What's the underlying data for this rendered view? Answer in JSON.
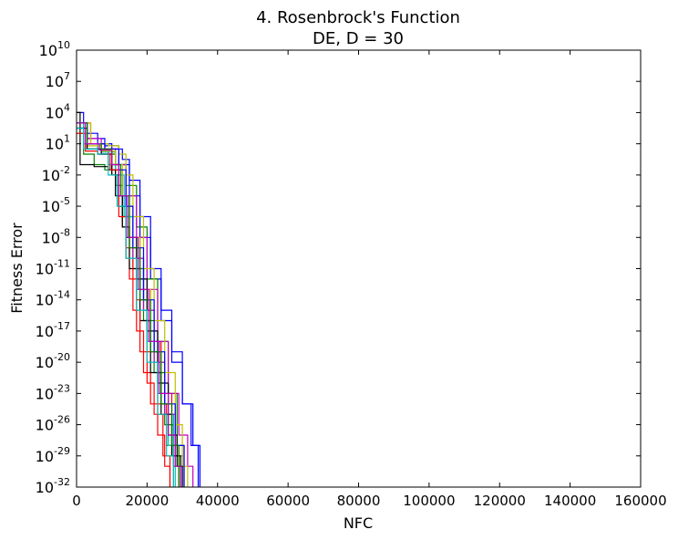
{
  "chart_data": {
    "type": "line",
    "title_line1": "4.   Rosenbrock's Function",
    "title_line2": "DE, D = 30",
    "xlabel": "NFC",
    "ylabel": "Fitness Error",
    "xlim": [
      0,
      160000
    ],
    "ylim_exponents": [
      -32,
      10
    ],
    "yscale": "log",
    "grid": false,
    "legend": "none",
    "x_ticks": [
      {
        "value": 0,
        "label": "0"
      },
      {
        "value": 20000,
        "label": "20000"
      },
      {
        "value": 40000,
        "label": "40000"
      },
      {
        "value": 60000,
        "label": "60000"
      },
      {
        "value": 80000,
        "label": "80000"
      },
      {
        "value": 100000,
        "label": "100000"
      },
      {
        "value": 120000,
        "label": "120000"
      },
      {
        "value": 140000,
        "label": "140000"
      },
      {
        "value": 160000,
        "label": "160000"
      }
    ],
    "y_ticks": [
      {
        "exponent": 10,
        "base": "10",
        "exp_label": "10"
      },
      {
        "exponent": 7,
        "base": "10",
        "exp_label": "7"
      },
      {
        "exponent": 4,
        "base": "10",
        "exp_label": "4"
      },
      {
        "exponent": 1,
        "base": "10",
        "exp_label": "1"
      },
      {
        "exponent": -2,
        "base": "10",
        "exp_label": "-2"
      },
      {
        "exponent": -5,
        "base": "10",
        "exp_label": "-5"
      },
      {
        "exponent": -8,
        "base": "10",
        "exp_label": "-8"
      },
      {
        "exponent": -11,
        "base": "10",
        "exp_label": "-11"
      },
      {
        "exponent": -14,
        "base": "10",
        "exp_label": "-14"
      },
      {
        "exponent": -17,
        "base": "10",
        "exp_label": "-17"
      },
      {
        "exponent": -20,
        "base": "10",
        "exp_label": "-20"
      },
      {
        "exponent": -23,
        "base": "10",
        "exp_label": "-23"
      },
      {
        "exponent": -26,
        "base": "10",
        "exp_label": "-26"
      },
      {
        "exponent": -29,
        "base": "10",
        "exp_label": "-29"
      },
      {
        "exponent": -32,
        "base": "10",
        "exp_label": "-32"
      }
    ],
    "series": [
      {
        "color": "#0000ff",
        "points": [
          [
            0,
            4
          ],
          [
            2000,
            2
          ],
          [
            6000,
            1
          ],
          [
            10000,
            0.5
          ],
          [
            13000,
            -0.5
          ],
          [
            15000,
            -2.5
          ],
          [
            18000,
            -6
          ],
          [
            21000,
            -11
          ],
          [
            24000,
            -15
          ],
          [
            27000,
            -19
          ],
          [
            30000,
            -24
          ],
          [
            33000,
            -28
          ],
          [
            35000,
            -32
          ]
        ]
      },
      {
        "color": "#0000ff",
        "points": [
          [
            0,
            3
          ],
          [
            3000,
            1.5
          ],
          [
            8000,
            0.8
          ],
          [
            12000,
            -1
          ],
          [
            15000,
            -4
          ],
          [
            18000,
            -8
          ],
          [
            21000,
            -12
          ],
          [
            24000,
            -16
          ],
          [
            27000,
            -20
          ],
          [
            30000,
            -24
          ],
          [
            32500,
            -28
          ],
          [
            34500,
            -32
          ]
        ]
      },
      {
        "color": "#ff0000",
        "points": [
          [
            0,
            3
          ],
          [
            2000,
            1
          ],
          [
            6000,
            0.5
          ],
          [
            9000,
            -1
          ],
          [
            11000,
            -3
          ],
          [
            13000,
            -7
          ],
          [
            15000,
            -12
          ],
          [
            17000,
            -17
          ],
          [
            19000,
            -21
          ],
          [
            21000,
            -24
          ],
          [
            23000,
            -27
          ],
          [
            25000,
            -30
          ],
          [
            26500,
            -32
          ]
        ]
      },
      {
        "color": "#ff0000",
        "points": [
          [
            0,
            2
          ],
          [
            3000,
            0.5
          ],
          [
            7000,
            0
          ],
          [
            10000,
            -2
          ],
          [
            12000,
            -5
          ],
          [
            14000,
            -9
          ],
          [
            17000,
            -14
          ],
          [
            20000,
            -19
          ],
          [
            23000,
            -24
          ],
          [
            25500,
            -28
          ],
          [
            27500,
            -32
          ]
        ]
      },
      {
        "color": "#ff0000",
        "points": [
          [
            0,
            3
          ],
          [
            4000,
            1
          ],
          [
            8000,
            0.5
          ],
          [
            11000,
            -1.5
          ],
          [
            13000,
            -4
          ],
          [
            15000,
            -8
          ],
          [
            18000,
            -13
          ],
          [
            21000,
            -18
          ],
          [
            24000,
            -23
          ],
          [
            27000,
            -28
          ],
          [
            29000,
            -32
          ]
        ]
      },
      {
        "color": "#008000",
        "points": [
          [
            0,
            2.5
          ],
          [
            2000,
            0
          ],
          [
            5000,
            -1
          ],
          [
            8000,
            -1.5
          ],
          [
            11000,
            -3
          ],
          [
            13000,
            -6
          ],
          [
            16000,
            -11
          ],
          [
            19000,
            -16
          ],
          [
            22000,
            -21
          ],
          [
            25000,
            -26
          ],
          [
            27500,
            -30
          ],
          [
            29000,
            -32
          ]
        ]
      },
      {
        "color": "#008000",
        "points": [
          [
            0,
            3
          ],
          [
            3000,
            1
          ],
          [
            7000,
            0
          ],
          [
            11000,
            -1
          ],
          [
            14000,
            -3
          ],
          [
            17000,
            -7
          ],
          [
            20000,
            -12
          ],
          [
            23000,
            -18
          ],
          [
            26000,
            -23
          ],
          [
            28500,
            -28
          ],
          [
            30500,
            -32
          ]
        ]
      },
      {
        "color": "#00bfbf",
        "points": [
          [
            0,
            3
          ],
          [
            2000,
            1
          ],
          [
            6000,
            0
          ],
          [
            9000,
            -1
          ],
          [
            12000,
            -4
          ],
          [
            14000,
            -8
          ],
          [
            17000,
            -13
          ],
          [
            20000,
            -18
          ],
          [
            23000,
            -23
          ],
          [
            26000,
            -28
          ],
          [
            28000,
            -32
          ]
        ]
      },
      {
        "color": "#00bfbf",
        "points": [
          [
            0,
            2
          ],
          [
            3000,
            0.5
          ],
          [
            7000,
            0.2
          ],
          [
            11000,
            -2
          ],
          [
            13500,
            -6
          ],
          [
            16000,
            -10
          ],
          [
            19000,
            -15
          ],
          [
            22000,
            -20
          ],
          [
            25000,
            -25
          ],
          [
            27500,
            -29
          ],
          [
            29500,
            -32
          ]
        ]
      },
      {
        "color": "#bf00bf",
        "points": [
          [
            0,
            3
          ],
          [
            3000,
            1.5
          ],
          [
            7000,
            0.5
          ],
          [
            11000,
            -1
          ],
          [
            14000,
            -4
          ],
          [
            17000,
            -8
          ],
          [
            20000,
            -13
          ],
          [
            23000,
            -18
          ],
          [
            26000,
            -23
          ],
          [
            29000,
            -27
          ],
          [
            31500,
            -30
          ],
          [
            33000,
            -32
          ]
        ]
      },
      {
        "color": "#bf00bf",
        "points": [
          [
            0,
            2.5
          ],
          [
            2500,
            0.5
          ],
          [
            6000,
            0
          ],
          [
            10000,
            -1.5
          ],
          [
            13000,
            -5
          ],
          [
            16000,
            -10
          ],
          [
            19000,
            -15
          ],
          [
            22000,
            -20
          ],
          [
            25000,
            -25
          ],
          [
            28000,
            -29
          ],
          [
            30000,
            -32
          ]
        ]
      },
      {
        "color": "#bfbf00",
        "points": [
          [
            0,
            3
          ],
          [
            4000,
            1
          ],
          [
            9000,
            0.8
          ],
          [
            12000,
            0
          ],
          [
            14000,
            -2
          ],
          [
            16000,
            -6
          ],
          [
            19000,
            -11
          ],
          [
            22000,
            -16
          ],
          [
            25000,
            -21
          ],
          [
            28000,
            -26
          ],
          [
            30000,
            -30
          ],
          [
            31500,
            -32
          ]
        ]
      },
      {
        "color": "#bfbf00",
        "points": [
          [
            0,
            2
          ],
          [
            3000,
            0.8
          ],
          [
            7000,
            0.3
          ],
          [
            11000,
            -1
          ],
          [
            13000,
            -4
          ],
          [
            15000,
            -8
          ],
          [
            18000,
            -13
          ],
          [
            21000,
            -19
          ],
          [
            24000,
            -24
          ],
          [
            27000,
            -29
          ],
          [
            29000,
            -32
          ]
        ]
      },
      {
        "color": "#000000",
        "points": [
          [
            0,
            4
          ],
          [
            1000,
            -1
          ],
          [
            5000,
            -1.2
          ],
          [
            9000,
            -1.5
          ],
          [
            11000,
            -4
          ],
          [
            13000,
            -7
          ],
          [
            15000,
            -11
          ],
          [
            18000,
            -16
          ],
          [
            21000,
            -21
          ],
          [
            24000,
            -25
          ],
          [
            27000,
            -29
          ],
          [
            29500,
            -32
          ]
        ]
      },
      {
        "color": "#000000",
        "points": [
          [
            0,
            2.5
          ],
          [
            3000,
            0.5
          ],
          [
            7000,
            0
          ],
          [
            10000,
            -2
          ],
          [
            12000,
            -5
          ],
          [
            14000,
            -8
          ],
          [
            17000,
            -12
          ],
          [
            20000,
            -17
          ],
          [
            23000,
            -22
          ],
          [
            26000,
            -27
          ],
          [
            28500,
            -30
          ],
          [
            30000,
            -32
          ]
        ]
      },
      {
        "color": "#0000ff",
        "points": [
          [
            0,
            3
          ],
          [
            3000,
            1
          ],
          [
            8000,
            0.5
          ],
          [
            12000,
            -1.5
          ],
          [
            14000,
            -5
          ],
          [
            16000,
            -9
          ],
          [
            19000,
            -14
          ],
          [
            22000,
            -19
          ],
          [
            25000,
            -24
          ],
          [
            28000,
            -28
          ],
          [
            30500,
            -32
          ]
        ]
      },
      {
        "color": "#ff0000",
        "points": [
          [
            0,
            2
          ],
          [
            2500,
            0.3
          ],
          [
            6000,
            0
          ],
          [
            9500,
            -1.5
          ],
          [
            12000,
            -6
          ],
          [
            14000,
            -10
          ],
          [
            16000,
            -15
          ],
          [
            18000,
            -19
          ],
          [
            20000,
            -22
          ],
          [
            22000,
            -25
          ],
          [
            24500,
            -29
          ],
          [
            26500,
            -32
          ]
        ]
      },
      {
        "color": "#008000",
        "points": [
          [
            0,
            3
          ],
          [
            3000,
            1
          ],
          [
            7000,
            0.5
          ],
          [
            10000,
            -1
          ],
          [
            12500,
            -4
          ],
          [
            15000,
            -9
          ],
          [
            18000,
            -14
          ],
          [
            21000,
            -19
          ],
          [
            24000,
            -24
          ],
          [
            27000,
            -28
          ],
          [
            29000,
            -32
          ]
        ]
      },
      {
        "color": "#00bfbf",
        "points": [
          [
            0,
            2.5
          ],
          [
            2000,
            0.5
          ],
          [
            6000,
            0
          ],
          [
            9000,
            -2
          ],
          [
            11500,
            -5
          ],
          [
            14000,
            -10
          ],
          [
            17000,
            -15
          ],
          [
            20000,
            -20
          ],
          [
            23000,
            -25
          ],
          [
            25500,
            -29
          ],
          [
            27500,
            -32
          ]
        ]
      },
      {
        "color": "#bf00bf",
        "points": [
          [
            0,
            3
          ],
          [
            2500,
            1
          ],
          [
            6500,
            0.4
          ],
          [
            10000,
            -1
          ],
          [
            12000,
            -4
          ],
          [
            14500,
            -8
          ],
          [
            17500,
            -13
          ],
          [
            20500,
            -18
          ],
          [
            23500,
            -23
          ],
          [
            26000,
            -27
          ],
          [
            28000,
            -30
          ],
          [
            29500,
            -32
          ]
        ]
      }
    ]
  }
}
